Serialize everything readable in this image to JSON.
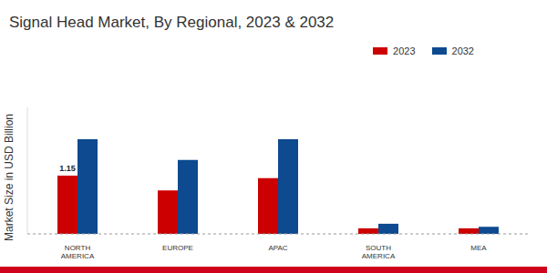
{
  "chart_data": {
    "type": "bar",
    "title": "Signal Head Market, By Regional, 2023 & 2032",
    "y_label": "Market Size in USD Billion",
    "categories": [
      "NORTH AMERICA",
      "EUROPE",
      "APAC",
      "SOUTH AMERICA",
      "MEA"
    ],
    "series": [
      {
        "name": "2023",
        "color": "#cc0000",
        "values": [
          1.15,
          0.86,
          1.1,
          0.11,
          0.11
        ],
        "value_labels": [
          "1.15",
          null,
          null,
          null,
          null
        ]
      },
      {
        "name": "2032",
        "color": "#0d4a8f",
        "values": [
          1.87,
          1.46,
          1.87,
          0.2,
          0.14
        ]
      }
    ],
    "ylim": [
      0,
      2.5
    ],
    "tick_labels": "x",
    "grid": false,
    "legend": "top right"
  }
}
